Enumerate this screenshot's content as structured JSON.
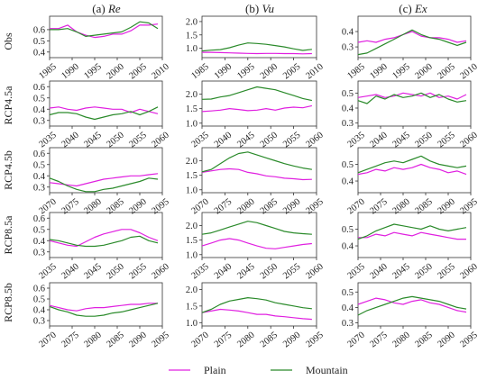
{
  "figure": {
    "column_titles": [
      {
        "label": "(a) ",
        "var": "Re"
      },
      {
        "label": "(b) ",
        "var": "Vu"
      },
      {
        "label": "(c) ",
        "var": "Ex"
      }
    ],
    "row_labels": [
      "Obs",
      "RCP4.5a",
      "RCP4.5b",
      "RCP8.5a",
      "RCP8.5b"
    ],
    "legend": [
      {
        "name": "Plain",
        "color": "#e020e0"
      },
      {
        "name": "Mountain",
        "color": "#2a8a2a"
      }
    ]
  },
  "chart_data": [
    {
      "type": "line",
      "row": "Obs",
      "col": "Re",
      "xlim": [
        1985,
        2010
      ],
      "ylim": [
        0.35,
        0.72
      ],
      "xticks": [
        1985,
        1990,
        1995,
        2000,
        2005,
        2010
      ],
      "yticks": [
        0.4,
        0.5,
        0.6
      ],
      "ytick_labels": [
        "0.4",
        "0.5",
        "0.6"
      ],
      "x": [
        1985,
        1987,
        1989,
        1991,
        1993,
        1995,
        1997,
        1999,
        2001,
        2003,
        2005,
        2007,
        2009
      ],
      "series": [
        {
          "name": "Plain",
          "values": [
            0.61,
            0.61,
            0.64,
            0.58,
            0.55,
            0.53,
            0.54,
            0.56,
            0.56,
            0.59,
            0.64,
            0.64,
            0.65
          ]
        },
        {
          "name": "Mountain",
          "values": [
            0.6,
            0.6,
            0.61,
            0.58,
            0.54,
            0.55,
            0.56,
            0.57,
            0.58,
            0.62,
            0.67,
            0.66,
            0.61
          ]
        }
      ]
    },
    {
      "type": "line",
      "row": "Obs",
      "col": "Vu",
      "xlim": [
        1985,
        2010
      ],
      "ylim": [
        0.65,
        2.2
      ],
      "xticks": [
        1985,
        1990,
        1995,
        2000,
        2005,
        2010
      ],
      "yticks": [
        1.0,
        1.5,
        2.0
      ],
      "ytick_labels": [
        "1.0",
        "1.5",
        "2.0"
      ],
      "x": [
        1985,
        1987,
        1989,
        1991,
        1993,
        1995,
        1997,
        1999,
        2001,
        2003,
        2005,
        2007,
        2009
      ],
      "series": [
        {
          "name": "Plain",
          "values": [
            0.85,
            0.85,
            0.84,
            0.83,
            0.82,
            0.81,
            0.8,
            0.81,
            0.81,
            0.8,
            0.8,
            0.79,
            0.8
          ]
        },
        {
          "name": "Mountain",
          "values": [
            0.9,
            0.93,
            0.95,
            1.02,
            1.12,
            1.2,
            1.18,
            1.15,
            1.1,
            1.05,
            0.98,
            0.92,
            0.96
          ]
        }
      ]
    },
    {
      "type": "line",
      "row": "Obs",
      "col": "Ex",
      "xlim": [
        1985,
        2010
      ],
      "ylim": [
        0.23,
        0.5
      ],
      "xticks": [
        1985,
        1990,
        1995,
        2000,
        2005,
        2010
      ],
      "yticks": [
        0.3,
        0.4
      ],
      "ytick_labels": [
        "0.3",
        "0.4"
      ],
      "x": [
        1985,
        1987,
        1989,
        1991,
        1993,
        1995,
        1997,
        1999,
        2001,
        2003,
        2005,
        2007,
        2009
      ],
      "series": [
        {
          "name": "Plain",
          "values": [
            0.33,
            0.34,
            0.33,
            0.35,
            0.36,
            0.38,
            0.4,
            0.37,
            0.36,
            0.36,
            0.35,
            0.33,
            0.34
          ]
        },
        {
          "name": "Mountain",
          "values": [
            0.25,
            0.26,
            0.29,
            0.32,
            0.35,
            0.38,
            0.41,
            0.38,
            0.36,
            0.35,
            0.33,
            0.31,
            0.33
          ]
        }
      ]
    },
    {
      "type": "line",
      "row": "RCP4.5a",
      "col": "Re",
      "xlim": [
        2035,
        2060
      ],
      "ylim": [
        0.25,
        0.65
      ],
      "xticks": [
        2035,
        2040,
        2045,
        2050,
        2055,
        2060
      ],
      "yticks": [
        0.3,
        0.4,
        0.5,
        0.6
      ],
      "ytick_labels": [
        "0.3",
        "0.4",
        "0.5",
        "0.6"
      ],
      "x": [
        2035,
        2037,
        2039,
        2041,
        2043,
        2045,
        2047,
        2049,
        2051,
        2053,
        2055,
        2057,
        2059
      ],
      "series": [
        {
          "name": "Plain",
          "values": [
            0.41,
            0.42,
            0.4,
            0.39,
            0.41,
            0.42,
            0.41,
            0.4,
            0.4,
            0.37,
            0.4,
            0.38,
            0.36
          ]
        },
        {
          "name": "Mountain",
          "values": [
            0.35,
            0.37,
            0.37,
            0.36,
            0.33,
            0.31,
            0.33,
            0.35,
            0.36,
            0.38,
            0.35,
            0.38,
            0.42
          ]
        }
      ]
    },
    {
      "type": "line",
      "row": "RCP4.5a",
      "col": "Vu",
      "xlim": [
        2035,
        2060
      ],
      "ylim": [
        0.9,
        2.45
      ],
      "xticks": [
        2035,
        2040,
        2045,
        2050,
        2055,
        2060
      ],
      "yticks": [
        1.0,
        1.5,
        2.0
      ],
      "ytick_labels": [
        "1.0",
        "1.5",
        "2.0"
      ],
      "x": [
        2035,
        2037,
        2039,
        2041,
        2043,
        2045,
        2047,
        2049,
        2051,
        2053,
        2055,
        2057,
        2059
      ],
      "series": [
        {
          "name": "Plain",
          "values": [
            1.4,
            1.42,
            1.45,
            1.5,
            1.47,
            1.43,
            1.45,
            1.5,
            1.45,
            1.52,
            1.55,
            1.53,
            1.6
          ]
        },
        {
          "name": "Mountain",
          "values": [
            1.82,
            1.83,
            1.9,
            1.95,
            2.05,
            2.15,
            2.25,
            2.2,
            2.15,
            2.05,
            1.95,
            1.85,
            1.78
          ]
        }
      ]
    },
    {
      "type": "line",
      "row": "RCP4.5a",
      "col": "Ex",
      "xlim": [
        2035,
        2060
      ],
      "ylim": [
        0.28,
        0.58
      ],
      "xticks": [
        2035,
        2040,
        2045,
        2050,
        2055,
        2060
      ],
      "yticks": [
        0.3,
        0.4,
        0.5
      ],
      "ytick_labels": [
        "0.3",
        "0.4",
        "0.5"
      ],
      "x": [
        2035,
        2037,
        2039,
        2041,
        2043,
        2045,
        2047,
        2049,
        2051,
        2053,
        2055,
        2057,
        2059
      ],
      "series": [
        {
          "name": "Plain",
          "values": [
            0.47,
            0.48,
            0.49,
            0.47,
            0.48,
            0.5,
            0.49,
            0.48,
            0.5,
            0.47,
            0.48,
            0.46,
            0.49
          ]
        },
        {
          "name": "Mountain",
          "values": [
            0.45,
            0.43,
            0.48,
            0.46,
            0.49,
            0.47,
            0.48,
            0.5,
            0.47,
            0.49,
            0.46,
            0.44,
            0.45
          ]
        }
      ]
    },
    {
      "type": "line",
      "row": "RCP4.5b",
      "col": "Re",
      "xlim": [
        2070,
        2095
      ],
      "ylim": [
        0.25,
        0.65
      ],
      "xticks": [
        2070,
        2075,
        2080,
        2085,
        2090,
        2095
      ],
      "yticks": [
        0.3,
        0.4,
        0.5,
        0.6
      ],
      "ytick_labels": [
        "0.3",
        "0.4",
        "0.5",
        "0.6"
      ],
      "x": [
        2070,
        2072,
        2074,
        2076,
        2078,
        2080,
        2082,
        2084,
        2086,
        2088,
        2090,
        2092,
        2094
      ],
      "series": [
        {
          "name": "Plain",
          "values": [
            0.34,
            0.33,
            0.32,
            0.31,
            0.33,
            0.35,
            0.37,
            0.38,
            0.39,
            0.4,
            0.4,
            0.41,
            0.42
          ]
        },
        {
          "name": "Mountain",
          "values": [
            0.38,
            0.35,
            0.31,
            0.28,
            0.26,
            0.26,
            0.28,
            0.29,
            0.31,
            0.33,
            0.35,
            0.38,
            0.37
          ]
        }
      ]
    },
    {
      "type": "line",
      "row": "RCP4.5b",
      "col": "Vu",
      "xlim": [
        2070,
        2095
      ],
      "ylim": [
        0.9,
        2.45
      ],
      "xticks": [
        2070,
        2075,
        2080,
        2085,
        2090,
        2095
      ],
      "yticks": [
        1.0,
        1.5,
        2.0
      ],
      "ytick_labels": [
        "1.0",
        "1.5",
        "2.0"
      ],
      "x": [
        2070,
        2072,
        2074,
        2076,
        2078,
        2080,
        2082,
        2084,
        2086,
        2088,
        2090,
        2092,
        2094
      ],
      "series": [
        {
          "name": "Plain",
          "values": [
            1.6,
            1.65,
            1.7,
            1.72,
            1.7,
            1.6,
            1.55,
            1.48,
            1.45,
            1.4,
            1.38,
            1.35,
            1.36
          ]
        },
        {
          "name": "Mountain",
          "values": [
            1.62,
            1.7,
            1.9,
            2.1,
            2.25,
            2.3,
            2.2,
            2.1,
            2.0,
            1.9,
            1.82,
            1.75,
            1.7
          ]
        }
      ]
    },
    {
      "type": "line",
      "row": "RCP4.5b",
      "col": "Ex",
      "xlim": [
        2070,
        2095
      ],
      "ylim": [
        0.33,
        0.6
      ],
      "xticks": [
        2070,
        2075,
        2080,
        2085,
        2090,
        2095
      ],
      "yticks": [
        0.4,
        0.5
      ],
      "ytick_labels": [
        "0.4",
        "0.5"
      ],
      "x": [
        2070,
        2072,
        2074,
        2076,
        2078,
        2080,
        2082,
        2084,
        2086,
        2088,
        2090,
        2092,
        2094
      ],
      "series": [
        {
          "name": "Plain",
          "values": [
            0.44,
            0.45,
            0.47,
            0.46,
            0.48,
            0.47,
            0.48,
            0.5,
            0.48,
            0.47,
            0.45,
            0.46,
            0.44
          ]
        },
        {
          "name": "Mountain",
          "values": [
            0.45,
            0.47,
            0.49,
            0.51,
            0.52,
            0.51,
            0.53,
            0.55,
            0.52,
            0.5,
            0.49,
            0.48,
            0.49
          ]
        }
      ]
    },
    {
      "type": "line",
      "row": "RCP8.5a",
      "col": "Re",
      "xlim": [
        2035,
        2060
      ],
      "ylim": [
        0.25,
        0.65
      ],
      "xticks": [
        2035,
        2040,
        2045,
        2050,
        2055,
        2060
      ],
      "yticks": [
        0.3,
        0.4,
        0.5,
        0.6
      ],
      "ytick_labels": [
        "0.3",
        "0.4",
        "0.5",
        "0.6"
      ],
      "x": [
        2035,
        2037,
        2039,
        2041,
        2043,
        2045,
        2047,
        2049,
        2051,
        2053,
        2055,
        2057,
        2059
      ],
      "series": [
        {
          "name": "Plain",
          "values": [
            0.4,
            0.38,
            0.36,
            0.35,
            0.39,
            0.43,
            0.46,
            0.48,
            0.5,
            0.5,
            0.47,
            0.43,
            0.4
          ]
        },
        {
          "name": "Mountain",
          "values": [
            0.41,
            0.4,
            0.38,
            0.36,
            0.35,
            0.35,
            0.36,
            0.38,
            0.4,
            0.43,
            0.44,
            0.4,
            0.38
          ]
        }
      ]
    },
    {
      "type": "line",
      "row": "RCP8.5a",
      "col": "Vu",
      "xlim": [
        2035,
        2060
      ],
      "ylim": [
        0.9,
        2.45
      ],
      "xticks": [
        2035,
        2040,
        2045,
        2050,
        2055,
        2060
      ],
      "yticks": [
        1.0,
        1.5,
        2.0
      ],
      "ytick_labels": [
        "1.0",
        "1.5",
        "2.0"
      ],
      "x": [
        2035,
        2037,
        2039,
        2041,
        2043,
        2045,
        2047,
        2049,
        2051,
        2053,
        2055,
        2057,
        2059
      ],
      "series": [
        {
          "name": "Plain",
          "values": [
            1.3,
            1.4,
            1.5,
            1.55,
            1.5,
            1.4,
            1.3,
            1.22,
            1.2,
            1.25,
            1.3,
            1.35,
            1.38
          ]
        },
        {
          "name": "Mountain",
          "values": [
            1.7,
            1.75,
            1.85,
            1.95,
            2.05,
            2.15,
            2.1,
            2.0,
            1.9,
            1.8,
            1.75,
            1.72,
            1.7
          ]
        }
      ]
    },
    {
      "type": "line",
      "row": "RCP8.5a",
      "col": "Ex",
      "xlim": [
        2035,
        2060
      ],
      "ylim": [
        0.33,
        0.6
      ],
      "xticks": [
        2035,
        2040,
        2045,
        2050,
        2055,
        2060
      ],
      "yticks": [
        0.4,
        0.5
      ],
      "ytick_labels": [
        "0.4",
        "0.5"
      ],
      "x": [
        2035,
        2037,
        2039,
        2041,
        2043,
        2045,
        2047,
        2049,
        2051,
        2053,
        2055,
        2057,
        2059
      ],
      "series": [
        {
          "name": "Plain",
          "values": [
            0.45,
            0.45,
            0.47,
            0.46,
            0.48,
            0.47,
            0.46,
            0.48,
            0.47,
            0.46,
            0.45,
            0.44,
            0.44
          ]
        },
        {
          "name": "Mountain",
          "values": [
            0.44,
            0.46,
            0.49,
            0.51,
            0.53,
            0.52,
            0.51,
            0.5,
            0.52,
            0.5,
            0.49,
            0.5,
            0.51
          ]
        }
      ]
    },
    {
      "type": "line",
      "row": "RCP8.5b",
      "col": "Re",
      "xlim": [
        2070,
        2095
      ],
      "ylim": [
        0.25,
        0.65
      ],
      "xticks": [
        2070,
        2075,
        2080,
        2085,
        2090,
        2095
      ],
      "yticks": [
        0.3,
        0.4,
        0.5,
        0.6
      ],
      "ytick_labels": [
        "0.3",
        "0.4",
        "0.5",
        "0.6"
      ],
      "x": [
        2070,
        2072,
        2074,
        2076,
        2078,
        2080,
        2082,
        2084,
        2086,
        2088,
        2090,
        2092,
        2094
      ],
      "series": [
        {
          "name": "Plain",
          "values": [
            0.44,
            0.42,
            0.4,
            0.39,
            0.41,
            0.42,
            0.42,
            0.43,
            0.44,
            0.45,
            0.45,
            0.46,
            0.46
          ]
        },
        {
          "name": "Mountain",
          "values": [
            0.43,
            0.4,
            0.38,
            0.35,
            0.34,
            0.34,
            0.35,
            0.37,
            0.38,
            0.4,
            0.42,
            0.44,
            0.46
          ]
        }
      ]
    },
    {
      "type": "line",
      "row": "RCP8.5b",
      "col": "Vu",
      "xlim": [
        2070,
        2095
      ],
      "ylim": [
        0.9,
        2.2
      ],
      "xticks": [
        2070,
        2075,
        2080,
        2085,
        2090,
        2095
      ],
      "yticks": [
        1.0,
        1.5,
        2.0
      ],
      "ytick_labels": [
        "1.0",
        "1.5",
        "2.0"
      ],
      "x": [
        2070,
        2072,
        2074,
        2076,
        2078,
        2080,
        2082,
        2084,
        2086,
        2088,
        2090,
        2092,
        2094
      ],
      "series": [
        {
          "name": "Plain",
          "values": [
            1.3,
            1.35,
            1.4,
            1.38,
            1.35,
            1.3,
            1.25,
            1.25,
            1.2,
            1.18,
            1.15,
            1.12,
            1.1
          ]
        },
        {
          "name": "Mountain",
          "values": [
            1.3,
            1.4,
            1.55,
            1.65,
            1.7,
            1.75,
            1.72,
            1.68,
            1.6,
            1.55,
            1.5,
            1.45,
            1.42
          ]
        }
      ]
    },
    {
      "type": "line",
      "row": "RCP8.5b",
      "col": "Ex",
      "xlim": [
        2070,
        2095
      ],
      "ylim": [
        0.28,
        0.56
      ],
      "xticks": [
        2070,
        2075,
        2080,
        2085,
        2090,
        2095
      ],
      "yticks": [
        0.3,
        0.4,
        0.5
      ],
      "ytick_labels": [
        "0.3",
        "0.4",
        "0.5"
      ],
      "x": [
        2070,
        2072,
        2074,
        2076,
        2078,
        2080,
        2082,
        2084,
        2086,
        2088,
        2090,
        2092,
        2094
      ],
      "series": [
        {
          "name": "Plain",
          "values": [
            0.42,
            0.44,
            0.46,
            0.45,
            0.43,
            0.42,
            0.44,
            0.45,
            0.43,
            0.42,
            0.4,
            0.38,
            0.37
          ]
        },
        {
          "name": "Mountain",
          "values": [
            0.35,
            0.38,
            0.4,
            0.42,
            0.44,
            0.46,
            0.47,
            0.46,
            0.45,
            0.44,
            0.42,
            0.4,
            0.39
          ]
        }
      ]
    }
  ]
}
